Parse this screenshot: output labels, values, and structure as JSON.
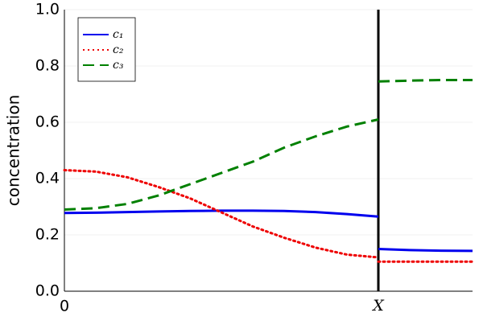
{
  "chart_data": {
    "type": "line",
    "ylabel": "concentration",
    "x": [
      0,
      0.1,
      0.2,
      0.3,
      0.4,
      0.5,
      0.6,
      0.7,
      0.8,
      0.9,
      1.0,
      1.0,
      1.0,
      1.1,
      1.2,
      1.3
    ],
    "series": [
      {
        "name": "c₁",
        "color": "#0000ee",
        "dash": "solid",
        "values": [
          0.278,
          0.279,
          0.281,
          0.283,
          0.285,
          0.286,
          0.286,
          0.285,
          0.281,
          0.274,
          0.265,
          null,
          0.15,
          0.146,
          0.144,
          0.143
        ]
      },
      {
        "name": "c₂",
        "color": "#ee0000",
        "dash": "dot",
        "values": [
          0.43,
          0.425,
          0.405,
          0.37,
          0.33,
          0.28,
          0.23,
          0.19,
          0.155,
          0.13,
          0.12,
          null,
          0.105,
          0.105,
          0.105,
          0.105
        ]
      },
      {
        "name": "c₃",
        "color": "#008000",
        "dash": "dash",
        "values": [
          0.29,
          0.295,
          0.31,
          0.34,
          0.38,
          0.42,
          0.46,
          0.51,
          0.55,
          0.585,
          0.61,
          null,
          0.745,
          0.748,
          0.75,
          0.75
        ]
      }
    ],
    "xlim": [
      0,
      1.3
    ],
    "xticks": [
      0,
      {
        "value": 1,
        "label": "X"
      }
    ],
    "ylim": [
      0,
      1
    ],
    "yticks": [
      {
        "value": 0,
        "label": "0.0"
      },
      0.2,
      0.4,
      0.6,
      0.8,
      {
        "value": 1,
        "label": "1.0"
      }
    ],
    "grid": true,
    "legend": "top-left"
  }
}
